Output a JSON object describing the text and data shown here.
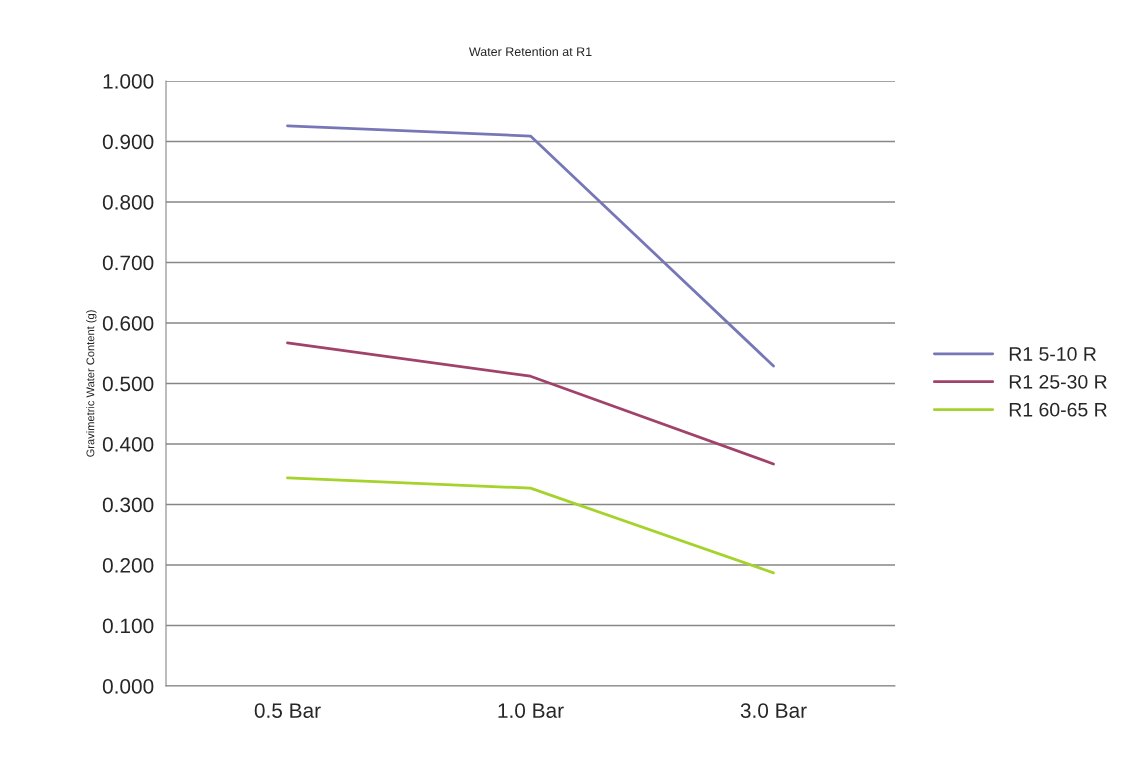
{
  "chart_data": {
    "type": "line",
    "title": "Water Retention at R1",
    "ylabel": "Gravimetric Water Content (g)",
    "categories": [
      "0.5 Bar",
      "1.0 Bar",
      "3.0 Bar"
    ],
    "series": [
      {
        "name": "R1 5-10 R",
        "color": "#7777b8",
        "values": [
          0.926,
          0.909,
          0.529
        ]
      },
      {
        "name": "R1 25-30 R",
        "color": "#a0426a",
        "values": [
          0.567,
          0.512,
          0.367
        ]
      },
      {
        "name": "R1 60-65 R",
        "color": "#a5d22b",
        "values": [
          0.344,
          0.327,
          0.187
        ]
      }
    ],
    "ylim": [
      0,
      1
    ],
    "yticks": [
      {
        "value": 0,
        "label": "0.000"
      },
      {
        "value": 0.1,
        "label": "0.100"
      },
      {
        "value": 0.2,
        "label": "0.200"
      },
      {
        "value": 0.3,
        "label": "0.300"
      },
      {
        "value": 0.4,
        "label": "0.400"
      },
      {
        "value": 0.5,
        "label": "0.500"
      },
      {
        "value": 0.6,
        "label": "0.600"
      },
      {
        "value": 0.7,
        "label": "0.700"
      },
      {
        "value": 0.8,
        "label": "0.800"
      },
      {
        "value": 0.9,
        "label": "0.900"
      },
      {
        "value": 1,
        "label": "1.000"
      }
    ],
    "grid": "y",
    "legend": "right"
  }
}
